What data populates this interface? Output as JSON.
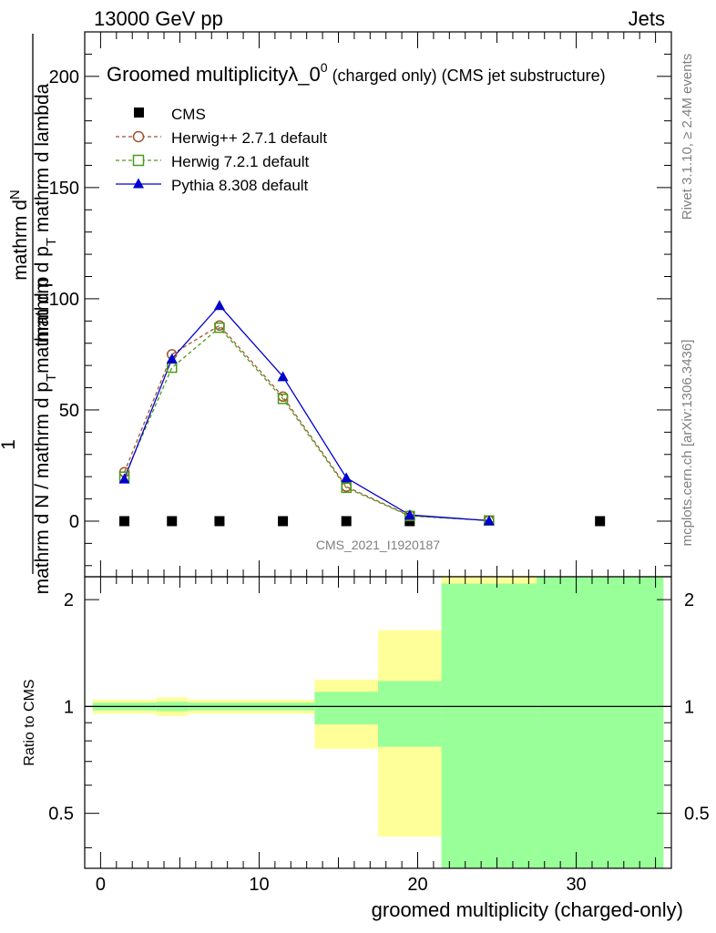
{
  "header": {
    "energy_label": "13000 GeV pp",
    "category_label": "Jets"
  },
  "side_labels": {
    "rivet": "Rivet 3.1.10, ≥ 2.4M events",
    "mcplots": "mcplots.cern.ch [arXiv:1306.3436]"
  },
  "watermark": "CMS_2021_I1920187",
  "colors": {
    "herwigpp": "#a0522d",
    "herwig7": "#4c9a1a",
    "pythia": "#0000cc",
    "band_yellow": "#ffff99",
    "band_green": "#99ff99"
  },
  "chart_data": [
    {
      "type": "line",
      "panel": "main",
      "title_main": "Groomed multiplicity",
      "title_lambda": "λ_0",
      "title_sup": "0",
      "title_suffix": " (charged only) (CMS jet substructure)",
      "ylabel": {
        "num_1": "mathrm d",
        "num_2": "N",
        "denom_a": "mathrm d p",
        "denom_a_sub": "T",
        "denom_b": " mathrm d lambda",
        "denom2_a": "mathrm d N / mathrm d p",
        "denom2_a_sub": "T",
        "denom2_b": " mathrm d p",
        "denom2_b_sub": "T",
        "denom2_c": "mathrm d p",
        "denom2_c_sub": "T",
        "denom2_d": " mathrm d lambda",
        "factor": "1",
        "lower_text": "mathrm d N / mathrm d p"
      },
      "xlim": [
        -1,
        36
      ],
      "ylim": [
        -25,
        220
      ],
      "y_ticks": [
        0,
        50,
        100,
        150,
        200
      ],
      "y_tick_labels": [
        "0",
        "50",
        "100",
        "150",
        "200"
      ],
      "legend": {
        "placement": "top-left",
        "entries": [
          {
            "label": "CMS",
            "marker": "square-filled",
            "key": "cms"
          },
          {
            "label": "Herwig++ 2.7.1 default",
            "marker": "circle-open",
            "key": "herwigpp"
          },
          {
            "label": "Herwig 7.2.1 default",
            "marker": "square-open",
            "key": "herwig7"
          },
          {
            "label": "Pythia 8.308 default",
            "marker": "triangle-filled",
            "key": "pythia"
          }
        ]
      },
      "series": [
        {
          "name": "CMS",
          "key": "cms",
          "x": [
            1.5,
            4.5,
            7.5,
            11.5,
            15.5,
            19.5,
            31.5
          ],
          "y": [
            0,
            0,
            0,
            0,
            0,
            0,
            0
          ]
        },
        {
          "name": "Herwig++ 2.7.1 default",
          "key": "herwigpp",
          "x": [
            1.5,
            4.5,
            7.5,
            11.5,
            15.5,
            19.5,
            24.5
          ],
          "y": [
            22,
            75,
            88,
            56,
            15.5,
            2.5,
            0.3
          ]
        },
        {
          "name": "Herwig 7.2.1 default",
          "key": "herwig7",
          "x": [
            1.5,
            4.5,
            7.5,
            11.5,
            15.5,
            19.5,
            24.5
          ],
          "y": [
            20,
            69,
            87,
            55,
            15,
            2.3,
            0.3
          ]
        },
        {
          "name": "Pythia 8.308 default",
          "key": "pythia",
          "x": [
            1.5,
            4.5,
            7.5,
            11.5,
            15.5,
            19.5,
            24.5
          ],
          "y": [
            19,
            73,
            97,
            65,
            19.5,
            2.8,
            0.2
          ]
        }
      ]
    },
    {
      "type": "area",
      "panel": "ratio",
      "ylabel": "Ratio to CMS",
      "xlabel": "groomed multiplicity (charged-only)",
      "xlim": [
        -1,
        36
      ],
      "ylim": [
        0.35,
        2.32
      ],
      "x_ticks": [
        0,
        10,
        20,
        30
      ],
      "x_tick_labels": [
        "0",
        "10",
        "20",
        "30"
      ],
      "y_ticks": [
        0.5,
        1,
        2
      ],
      "y_tick_labels": [
        "0.5",
        "1",
        "2"
      ],
      "reference_line": 1,
      "bands": [
        {
          "x0": -0.5,
          "x1": 3.5,
          "yellow": [
            0.955,
            1.045
          ],
          "green": [
            0.975,
            1.025
          ]
        },
        {
          "x0": 3.5,
          "x1": 5.5,
          "yellow": [
            0.94,
            1.06
          ],
          "green": [
            0.97,
            1.03
          ]
        },
        {
          "x0": 5.5,
          "x1": 13.5,
          "yellow": [
            0.955,
            1.045
          ],
          "green": [
            0.975,
            1.025
          ]
        },
        {
          "x0": 13.5,
          "x1": 17.5,
          "yellow": [
            0.76,
            1.19
          ],
          "green": [
            0.89,
            1.1
          ]
        },
        {
          "x0": 17.5,
          "x1": 21.5,
          "yellow": [
            0.43,
            1.64
          ],
          "green": [
            0.77,
            1.18
          ]
        },
        {
          "x0": 21.5,
          "x1": 27.5,
          "yellow": [
            0.35,
            2.32
          ],
          "green": [
            0.35,
            2.22
          ]
        },
        {
          "x0": 27.5,
          "x1": 35.5,
          "yellow": [
            0.35,
            2.32
          ],
          "green": [
            0.35,
            2.32
          ]
        }
      ]
    }
  ]
}
